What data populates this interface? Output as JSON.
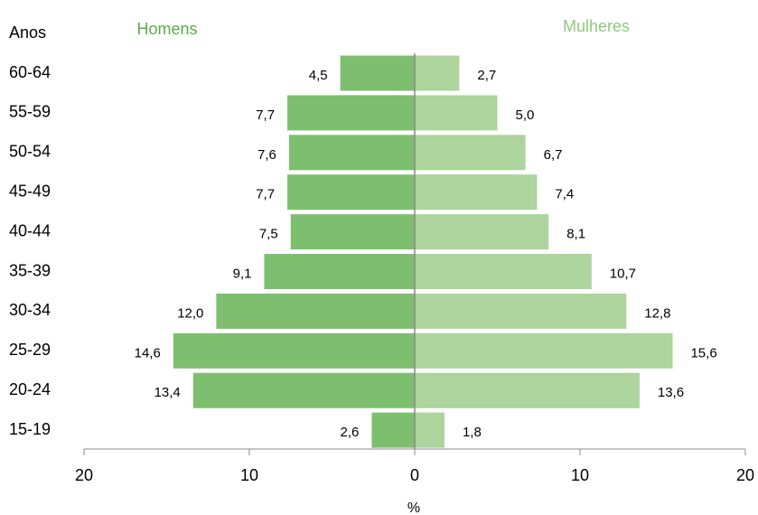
{
  "chart_data": {
    "type": "pyramid",
    "y_label": "Anos",
    "x_label": "%",
    "categories": [
      "60-64",
      "55-59",
      "50-54",
      "45-49",
      "40-44",
      "35-39",
      "30-34",
      "25-29",
      "20-24",
      "15-19"
    ],
    "series": [
      {
        "name": "Homens",
        "color": "#7dbf6e",
        "side": "left",
        "values": [
          4.5,
          7.7,
          7.6,
          7.7,
          7.5,
          9.1,
          12.0,
          14.6,
          13.4,
          2.6
        ],
        "value_labels": [
          "4,5",
          "7,7",
          "7,6",
          "7,7",
          "7,5",
          "9,1",
          "12,0",
          "14,6",
          "13,4",
          "2,6"
        ]
      },
      {
        "name": "Mulheres",
        "color": "#acd49c",
        "side": "right",
        "values": [
          2.7,
          5.0,
          6.7,
          7.4,
          8.1,
          10.7,
          12.8,
          15.6,
          13.6,
          1.8
        ],
        "value_labels": [
          "2,7",
          "5,0",
          "6,7",
          "7,4",
          "8,1",
          "10,7",
          "12,8",
          "15,6",
          "13,6",
          "1,8"
        ]
      }
    ],
    "xlim": [
      -20,
      20
    ],
    "xticks": [
      {
        "value": -20,
        "label": "20"
      },
      {
        "value": -10,
        "label": "10"
      },
      0,
      10,
      20
    ]
  }
}
